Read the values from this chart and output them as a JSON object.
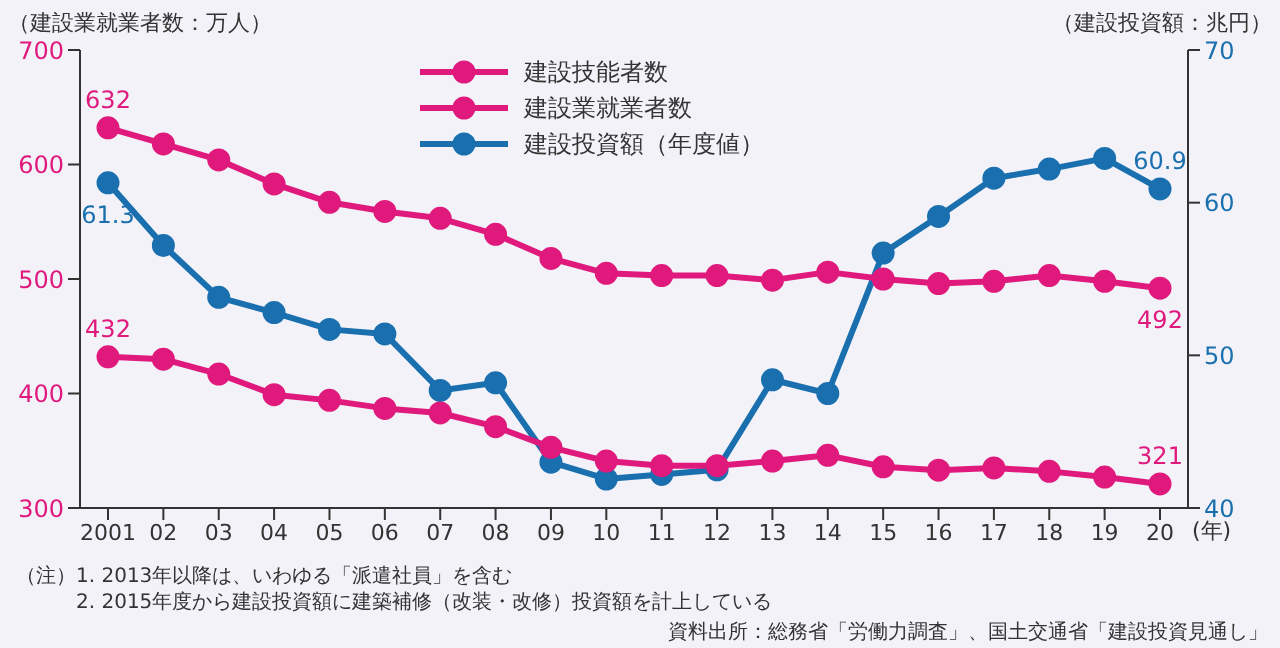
{
  "chart_data": {
    "type": "line",
    "ylabel": "（建設業就業者数：万人）",
    "y2label": "（建設投資額：兆円）",
    "xlabel": "(年)",
    "categories": [
      "2001",
      "02",
      "03",
      "04",
      "05",
      "06",
      "07",
      "08",
      "09",
      "10",
      "11",
      "12",
      "13",
      "14",
      "15",
      "16",
      "17",
      "18",
      "19",
      "20"
    ],
    "series": [
      {
        "name": "建設技能者数",
        "color": "#e0197d",
        "values": [
          432,
          430,
          417,
          399,
          394,
          387,
          383,
          371,
          353,
          341,
          337,
          337,
          341,
          346,
          336,
          333,
          335,
          332,
          327,
          321
        ],
        "value_labels": [
          "432",
          null,
          null,
          null,
          null,
          null,
          null,
          null,
          null,
          null,
          null,
          null,
          null,
          null,
          null,
          null,
          null,
          null,
          null,
          "321"
        ]
      },
      {
        "name": "建設業就業者数",
        "color": "#e0197d",
        "values": [
          632,
          618,
          604,
          583,
          567,
          559,
          553,
          539,
          518,
          505,
          503,
          503,
          499,
          506,
          500,
          496,
          498,
          503,
          498,
          492
        ],
        "value_labels": [
          "632",
          null,
          null,
          null,
          null,
          null,
          null,
          null,
          null,
          null,
          null,
          null,
          null,
          null,
          null,
          null,
          null,
          null,
          null,
          "492"
        ]
      },
      {
        "name": "建設投資額（年度値）",
        "color": "#1a6faf",
        "axis": "y2",
        "values": [
          61.3,
          57.2,
          53.8,
          52.8,
          51.7,
          51.4,
          47.7,
          48.2,
          43.0,
          41.9,
          42.2,
          42.5,
          48.4,
          47.5,
          56.7,
          59.1,
          61.6,
          62.2,
          62.9,
          60.9
        ],
        "value_labels": [
          "61.3",
          null,
          null,
          null,
          null,
          null,
          null,
          null,
          null,
          null,
          null,
          null,
          null,
          null,
          null,
          null,
          null,
          null,
          null,
          "60.9"
        ]
      }
    ],
    "ylim": [
      300,
      700
    ],
    "yticks": [
      300,
      400,
      500,
      600,
      700
    ],
    "y2lim": [
      40,
      70
    ],
    "y2ticks": [
      40,
      50,
      60,
      70
    ],
    "marker": "circle",
    "line_style": "solid",
    "legend": "top",
    "annotations": [
      "（注）1. 2013年以降は、いわゆる「派遣社員」を含む",
      "2. 2015年度から建設投資額に建築補修（改装・改修）投資額を計上している",
      "資料出所：総務省「労働力調査」、国土交通省「建設投資見通し」"
    ]
  }
}
